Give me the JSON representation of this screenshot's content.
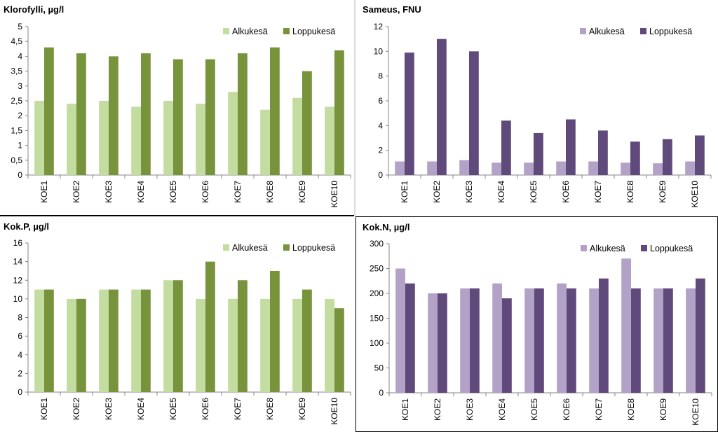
{
  "chart_data": [
    {
      "type": "bar",
      "title": "Klorofylli, µg/l",
      "categories": [
        "KOE1",
        "KOE2",
        "KOE3",
        "KOE4",
        "KOE5",
        "KOE6",
        "KOE7",
        "KOE8",
        "KOE9",
        "KOE10"
      ],
      "ylim": [
        0,
        5
      ],
      "yticks": [
        "0",
        "0,5",
        "1",
        "1,5",
        "2",
        "2,5",
        "3",
        "3,5",
        "4",
        "4,5",
        "5"
      ],
      "legend_position": "top-right",
      "series": [
        {
          "name": "Alkukesä",
          "color": "#c3dca0",
          "values": [
            2.5,
            2.4,
            2.5,
            2.3,
            2.5,
            2.4,
            2.8,
            2.2,
            2.6,
            2.3
          ]
        },
        {
          "name": "Loppukesä",
          "color": "#77933c",
          "values": [
            4.3,
            4.1,
            4.0,
            4.1,
            3.9,
            3.9,
            4.1,
            4.3,
            3.5,
            4.2
          ]
        }
      ]
    },
    {
      "type": "bar",
      "title": "Sameus, FNU",
      "categories": [
        "KOE1",
        "KOE2",
        "KOE3",
        "KOE4",
        "KOE5",
        "KOE6",
        "KOE7",
        "KOE8",
        "KOE9",
        "KOE10"
      ],
      "ylim": [
        0,
        12
      ],
      "yticks": [
        "0",
        "2",
        "4",
        "6",
        "8",
        "10",
        "12"
      ],
      "legend_position": "top-right",
      "series": [
        {
          "name": "Alkukesä",
          "color": "#b3a2c7",
          "values": [
            1.1,
            1.1,
            1.2,
            1.0,
            1.0,
            1.1,
            1.1,
            1.0,
            0.95,
            1.1
          ]
        },
        {
          "name": "Loppukesä",
          "color": "#604a7b",
          "values": [
            9.9,
            11.0,
            10.0,
            4.4,
            3.4,
            4.5,
            3.6,
            2.7,
            2.9,
            3.2
          ]
        }
      ]
    },
    {
      "type": "bar",
      "title": "Kok.P, µg/l",
      "categories": [
        "KOE1",
        "KOE2",
        "KOE3",
        "KOE4",
        "KOE5",
        "KOE6",
        "KOE7",
        "KOE8",
        "KOE9",
        "KOE10"
      ],
      "ylim": [
        0,
        16
      ],
      "yticks": [
        "0",
        "2",
        "4",
        "6",
        "8",
        "10",
        "12",
        "14",
        "16"
      ],
      "legend_position": "top-right",
      "series": [
        {
          "name": "Alkukesä",
          "color": "#c3dca0",
          "values": [
            11,
            10,
            11,
            11,
            12,
            10,
            10,
            10,
            10,
            10
          ]
        },
        {
          "name": "Loppukesä",
          "color": "#77933c",
          "values": [
            11,
            10,
            11,
            11,
            12,
            14,
            12,
            13,
            11,
            9
          ]
        }
      ]
    },
    {
      "type": "bar",
      "title": "Kok.N, µg/l",
      "categories": [
        "KOE1",
        "KOE2",
        "KOE3",
        "KOE4",
        "KOE5",
        "KOE6",
        "KOE7",
        "KOE8",
        "KOE9",
        "KOE10"
      ],
      "ylim": [
        0,
        300
      ],
      "yticks": [
        "0",
        "50",
        "100",
        "150",
        "200",
        "250",
        "300"
      ],
      "legend_position": "top-right",
      "series": [
        {
          "name": "Alkukesä",
          "color": "#b3a2c7",
          "values": [
            250,
            200,
            210,
            220,
            210,
            220,
            210,
            270,
            210,
            210
          ]
        },
        {
          "name": "Loppukesä",
          "color": "#604a7b",
          "values": [
            220,
            200,
            210,
            190,
            210,
            210,
            230,
            210,
            210,
            230
          ]
        }
      ]
    }
  ]
}
